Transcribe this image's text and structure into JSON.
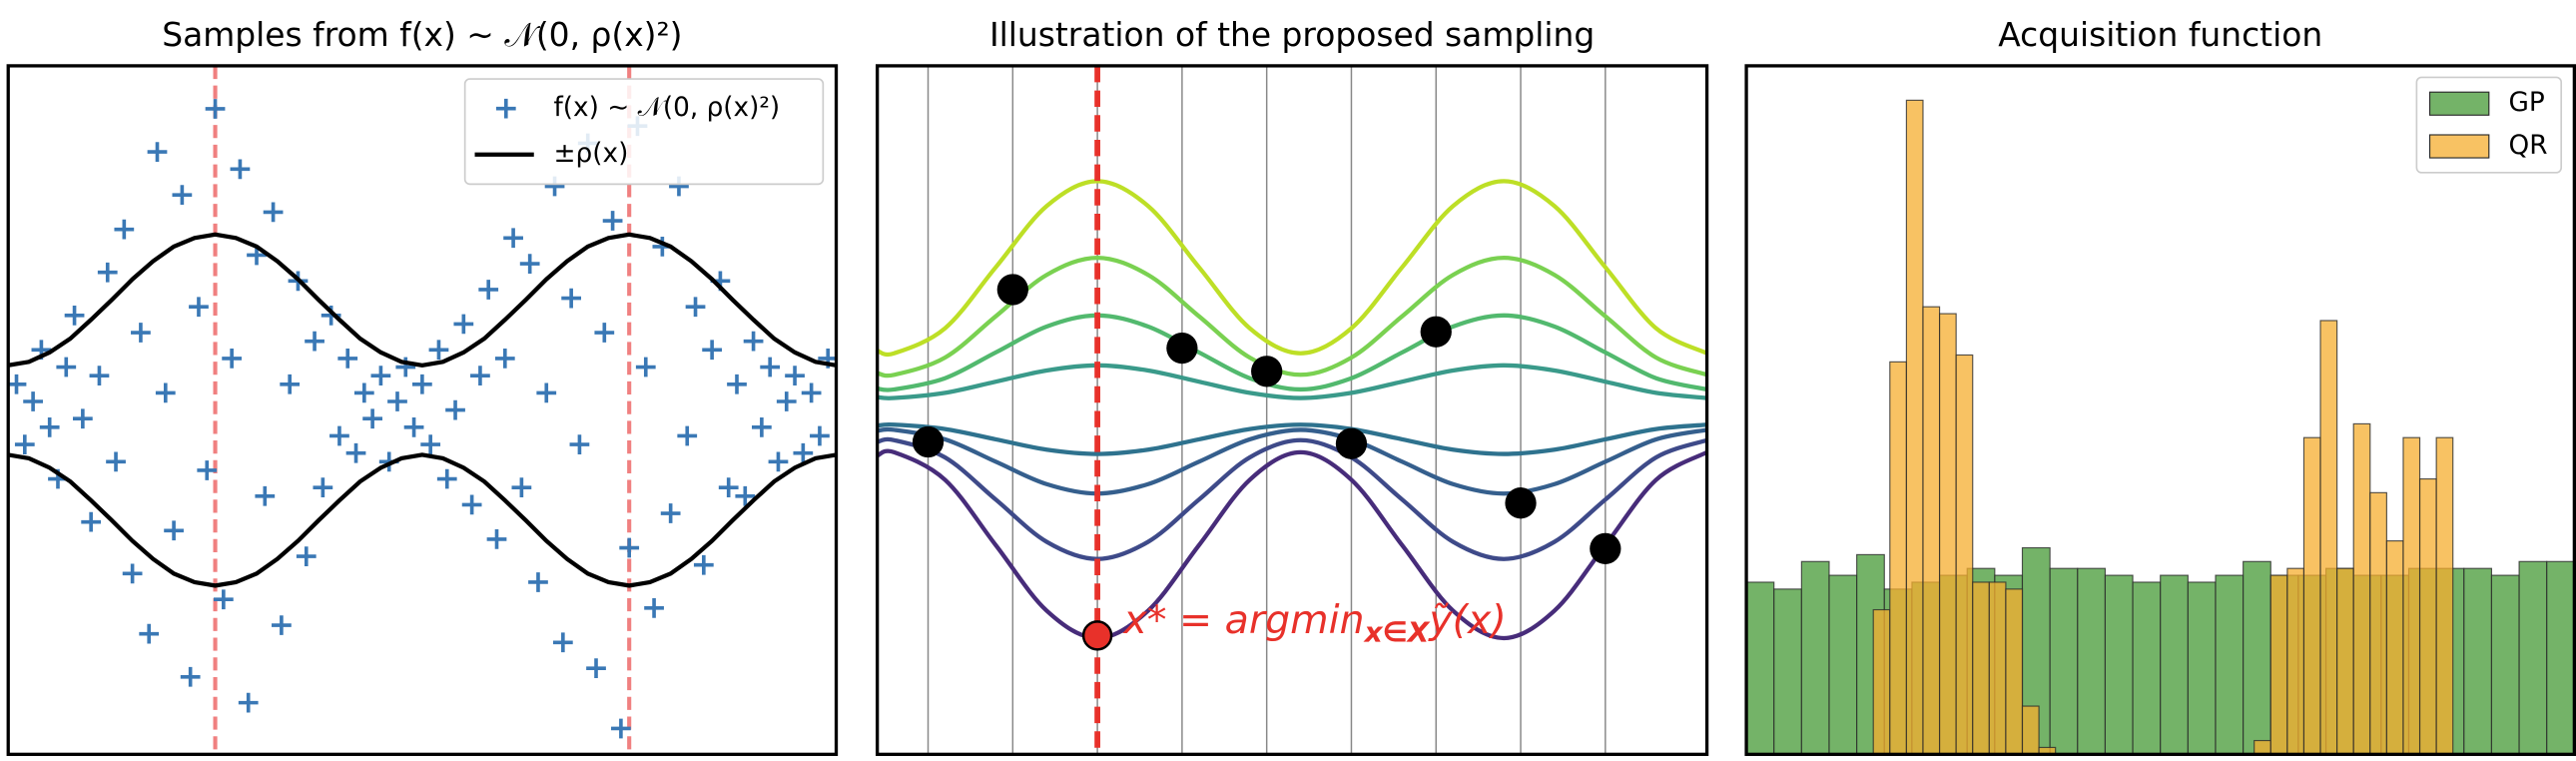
{
  "chart_data": [
    {
      "type": "scatter",
      "title": "Samples from f(x) ∼ 𝒩(0, ρ(x)²)",
      "xlim": [
        0,
        10
      ],
      "ylim": [
        -4,
        4
      ],
      "vlines": [
        2.5,
        7.5
      ],
      "vline_color": "#f08080",
      "legend": "upper right",
      "series": [
        {
          "name": "f(x) ∼ 𝒩(0, ρ(x)²)",
          "mode": "markers",
          "color": "#3a78b5",
          "x": [
            0.1,
            0.2,
            0.3,
            0.4,
            0.5,
            0.6,
            0.7,
            0.8,
            0.9,
            1.0,
            1.1,
            1.2,
            1.3,
            1.4,
            1.5,
            1.6,
            1.7,
            1.8,
            1.9,
            2.0,
            2.1,
            2.2,
            2.3,
            2.4,
            2.5,
            2.6,
            2.7,
            2.8,
            2.9,
            3.0,
            3.1,
            3.2,
            3.3,
            3.4,
            3.5,
            3.6,
            3.7,
            3.8,
            3.9,
            4.0,
            4.1,
            4.2,
            4.3,
            4.4,
            4.5,
            4.6,
            4.7,
            4.8,
            4.9,
            5.0,
            5.1,
            5.2,
            5.3,
            5.4,
            5.5,
            5.6,
            5.7,
            5.8,
            5.9,
            6.0,
            6.1,
            6.2,
            6.3,
            6.4,
            6.5,
            6.6,
            6.7,
            6.8,
            6.9,
            7.0,
            7.1,
            7.2,
            7.3,
            7.4,
            7.5,
            7.6,
            7.7,
            7.8,
            7.9,
            8.0,
            8.1,
            8.2,
            8.3,
            8.4,
            8.5,
            8.6,
            8.7,
            8.8,
            8.9,
            9.0,
            9.1,
            9.2,
            9.3,
            9.4,
            9.5,
            9.6,
            9.7,
            9.8,
            9.9
          ],
          "values": [
            0.3,
            -0.4,
            0.1,
            0.7,
            -0.2,
            -0.8,
            0.5,
            1.1,
            -0.1,
            -1.3,
            0.4,
            1.6,
            -0.6,
            2.1,
            -1.9,
            0.9,
            -2.6,
            3.0,
            0.2,
            -1.4,
            2.5,
            -3.1,
            1.2,
            -0.7,
            3.5,
            -2.2,
            0.6,
            2.8,
            -3.4,
            1.8,
            -1.0,
            2.3,
            -2.5,
            0.3,
            1.5,
            -1.7,
            0.8,
            -0.9,
            1.1,
            -0.3,
            0.6,
            -0.5,
            0.2,
            -0.1,
            0.4,
            -0.6,
            0.1,
            0.5,
            -0.2,
            0.3,
            -0.4,
            0.7,
            -0.8,
            0,
            1.0,
            -1.1,
            0.4,
            1.4,
            -1.5,
            0.6,
            2.0,
            -0.9,
            1.7,
            -2.0,
            0.2,
            2.6,
            -2.7,
            1.3,
            -0.4,
            3.1,
            -3.0,
            0.9,
            2.2,
            -3.7,
            -1.6,
            3.3,
            0.5,
            -2.3,
            1.9,
            -1.2,
            2.6,
            -0.3,
            1.2,
            -1.8,
            0.7,
            1.5,
            -0.9,
            0.3,
            -1.0,
            0.8,
            -0.2,
            0.5,
            -0.6,
            0.1,
            0.4,
            -0.5,
            0.2,
            -0.3,
            0.6
          ]
        },
        {
          "name": "±ρ(x)",
          "mode": "lines",
          "color": "#000000",
          "x": [
            0,
            0.25,
            0.5,
            0.75,
            1,
            1.25,
            1.5,
            1.75,
            2,
            2.25,
            2.5,
            2.75,
            3,
            3.25,
            3.5,
            3.75,
            4,
            4.25,
            4.5,
            4.75,
            5,
            5.25,
            5.5,
            5.75,
            6,
            6.25,
            6.5,
            6.75,
            7,
            7.25,
            7.5,
            7.75,
            8,
            8.25,
            8.5,
            8.75,
            9,
            9.25,
            9.5,
            9.75,
            10
          ],
          "values": [
            0.52,
            0.56,
            0.67,
            0.83,
            1.05,
            1.28,
            1.52,
            1.73,
            1.9,
            2.0,
            2.04,
            2.0,
            1.9,
            1.73,
            1.52,
            1.28,
            1.05,
            0.83,
            0.67,
            0.56,
            0.52,
            0.56,
            0.67,
            0.83,
            1.05,
            1.28,
            1.52,
            1.73,
            1.9,
            2.0,
            2.04,
            2.0,
            1.9,
            1.73,
            1.52,
            1.28,
            1.05,
            0.83,
            0.67,
            0.56,
            0.52
          ],
          "lower": [
            -0.52,
            -0.56,
            -0.67,
            -0.83,
            -1.05,
            -1.28,
            -1.52,
            -1.73,
            -1.9,
            -2.0,
            -2.04,
            -2.0,
            -1.9,
            -1.73,
            -1.52,
            -1.28,
            -1.05,
            -0.83,
            -0.67,
            -0.56,
            -0.52,
            -0.56,
            -0.67,
            -0.83,
            -1.05,
            -1.28,
            -1.52,
            -1.73,
            -1.9,
            -2.0,
            -2.04,
            -2.0,
            -1.9,
            -1.73,
            -1.52,
            -1.28,
            -1.05,
            -0.83,
            -0.67,
            -0.56,
            -0.52
          ]
        }
      ]
    },
    {
      "type": "line",
      "title": "Illustration of the proposed sampling",
      "xlim": [
        0,
        9.8
      ],
      "ylim": [
        -4,
        4
      ],
      "vlines": [
        0.6,
        1.6,
        2.6,
        3.6,
        4.6,
        5.6,
        6.6,
        7.6,
        8.6
      ],
      "x": [
        0,
        0.2,
        0.8,
        1.4,
        2.0,
        2.6,
        3.2,
        3.8,
        4.4,
        5.0,
        5.6,
        6.2,
        6.8,
        7.4,
        8.0,
        8.6,
        9.2,
        9.8
      ],
      "series": [
        {
          "color": "#bddf26",
          "values": [
            0.69,
            0.66,
            0.95,
            1.66,
            2.37,
            2.66,
            2.37,
            1.66,
            0.95,
            0.66,
            0.95,
            1.66,
            2.37,
            2.66,
            2.37,
            1.66,
            0.95,
            0.66
          ]
        },
        {
          "color": "#7ad151",
          "values": [
            0.43,
            0.41,
            0.61,
            1.09,
            1.57,
            1.77,
            1.57,
            1.09,
            0.61,
            0.41,
            0.61,
            1.09,
            1.57,
            1.77,
            1.57,
            1.09,
            0.61,
            0.41
          ]
        },
        {
          "color": "#52b96e",
          "values": [
            0.25,
            0.24,
            0.37,
            0.67,
            0.97,
            1.1,
            0.97,
            0.67,
            0.37,
            0.24,
            0.37,
            0.67,
            0.97,
            1.1,
            0.97,
            0.67,
            0.37,
            0.24
          ]
        },
        {
          "color": "#3a9a8a",
          "values": [
            0.15,
            0.14,
            0.2,
            0.33,
            0.46,
            0.52,
            0.46,
            0.33,
            0.2,
            0.14,
            0.2,
            0.33,
            0.46,
            0.52,
            0.46,
            0.33,
            0.2,
            0.14
          ]
        },
        {
          "color": "#2e728e",
          "values": [
            -0.18,
            -0.17,
            -0.22,
            -0.34,
            -0.46,
            -0.51,
            -0.46,
            -0.34,
            -0.22,
            -0.17,
            -0.22,
            -0.34,
            -0.46,
            -0.51,
            -0.46,
            -0.34,
            -0.22,
            -0.17
          ]
        },
        {
          "color": "#355f8d",
          "values": [
            -0.24,
            -0.23,
            -0.34,
            -0.6,
            -0.86,
            -0.97,
            -0.86,
            -0.6,
            -0.34,
            -0.23,
            -0.34,
            -0.6,
            -0.86,
            -0.97,
            -0.86,
            -0.6,
            -0.34,
            -0.23
          ]
        },
        {
          "color": "#3e4a89",
          "values": [
            -0.37,
            -0.35,
            -0.55,
            -1.04,
            -1.53,
            -1.73,
            -1.53,
            -1.04,
            -0.55,
            -0.35,
            -0.55,
            -1.04,
            -1.53,
            -1.73,
            -1.53,
            -1.04,
            -0.55,
            -0.35
          ]
        },
        {
          "color": "#472c7a",
          "values": [
            -0.53,
            -0.49,
            -0.81,
            -1.57,
            -2.33,
            -2.65,
            -2.33,
            -1.57,
            -0.81,
            -0.49,
            -0.81,
            -1.57,
            -2.33,
            -2.65,
            -2.33,
            -1.57,
            -0.81,
            -0.49
          ]
        }
      ],
      "points": {
        "color": "#000000",
        "x": [
          0.6,
          1.6,
          3.6,
          4.6,
          5.6,
          6.6,
          7.6,
          8.6
        ],
        "values": [
          -0.37,
          1.4,
          0.72,
          0.45,
          -0.39,
          0.91,
          -1.08,
          -1.61
        ]
      },
      "highlight": {
        "color": "#e8312a",
        "x": 2.6,
        "value": -2.62
      },
      "annotation": {
        "text": "x* = argmin",
        "sub": "x∈X",
        "tail": "ỹ(x)"
      }
    },
    {
      "type": "histogram",
      "title": "Acquisition function",
      "xlim": [
        0,
        30
      ],
      "ylim": [
        0,
        100
      ],
      "legend": "upper right",
      "series": [
        {
          "name": "GP",
          "color": "#5ca64d",
          "opacity": 0.85,
          "bins": [
            0,
            1,
            2,
            3,
            4,
            5,
            6,
            7,
            8,
            9,
            10,
            11,
            12,
            13,
            14,
            15,
            16,
            17,
            18,
            19,
            20,
            21,
            22,
            23,
            24,
            25,
            26,
            27,
            28,
            29,
            30
          ],
          "values": [
            25,
            24,
            28,
            26,
            29,
            24,
            25,
            26,
            27,
            26,
            30,
            27,
            27,
            26,
            25,
            26,
            25,
            26,
            28,
            26,
            26,
            27,
            26,
            26,
            27,
            27,
            27,
            26,
            28,
            28
          ]
        },
        {
          "name": "QR",
          "color": "#f5ad2f",
          "opacity": 0.75,
          "bins": [
            4.6,
            5.2,
            5.8,
            6.4,
            7.0,
            7.6,
            8.2,
            8.8,
            9.4,
            10.0,
            10.6,
            11.2,
            11.8,
            12.4,
            13.0,
            13.6,
            14.2,
            14.8,
            15.4,
            16.0,
            16.6,
            17.2,
            17.8,
            18.4,
            19.0,
            19.6,
            20.2,
            20.8,
            21.4,
            22.0,
            22.6,
            23.2,
            23.8,
            24.4,
            25.0,
            25.6
          ],
          "values": [
            21,
            57,
            95,
            65,
            64,
            58,
            25,
            25,
            24,
            7,
            1,
            0,
            0,
            0,
            0,
            0,
            0,
            0,
            0,
            0,
            0,
            0,
            0,
            2,
            26,
            27,
            46,
            63,
            27,
            48,
            38,
            31,
            46,
            40,
            46
          ]
        }
      ]
    }
  ]
}
